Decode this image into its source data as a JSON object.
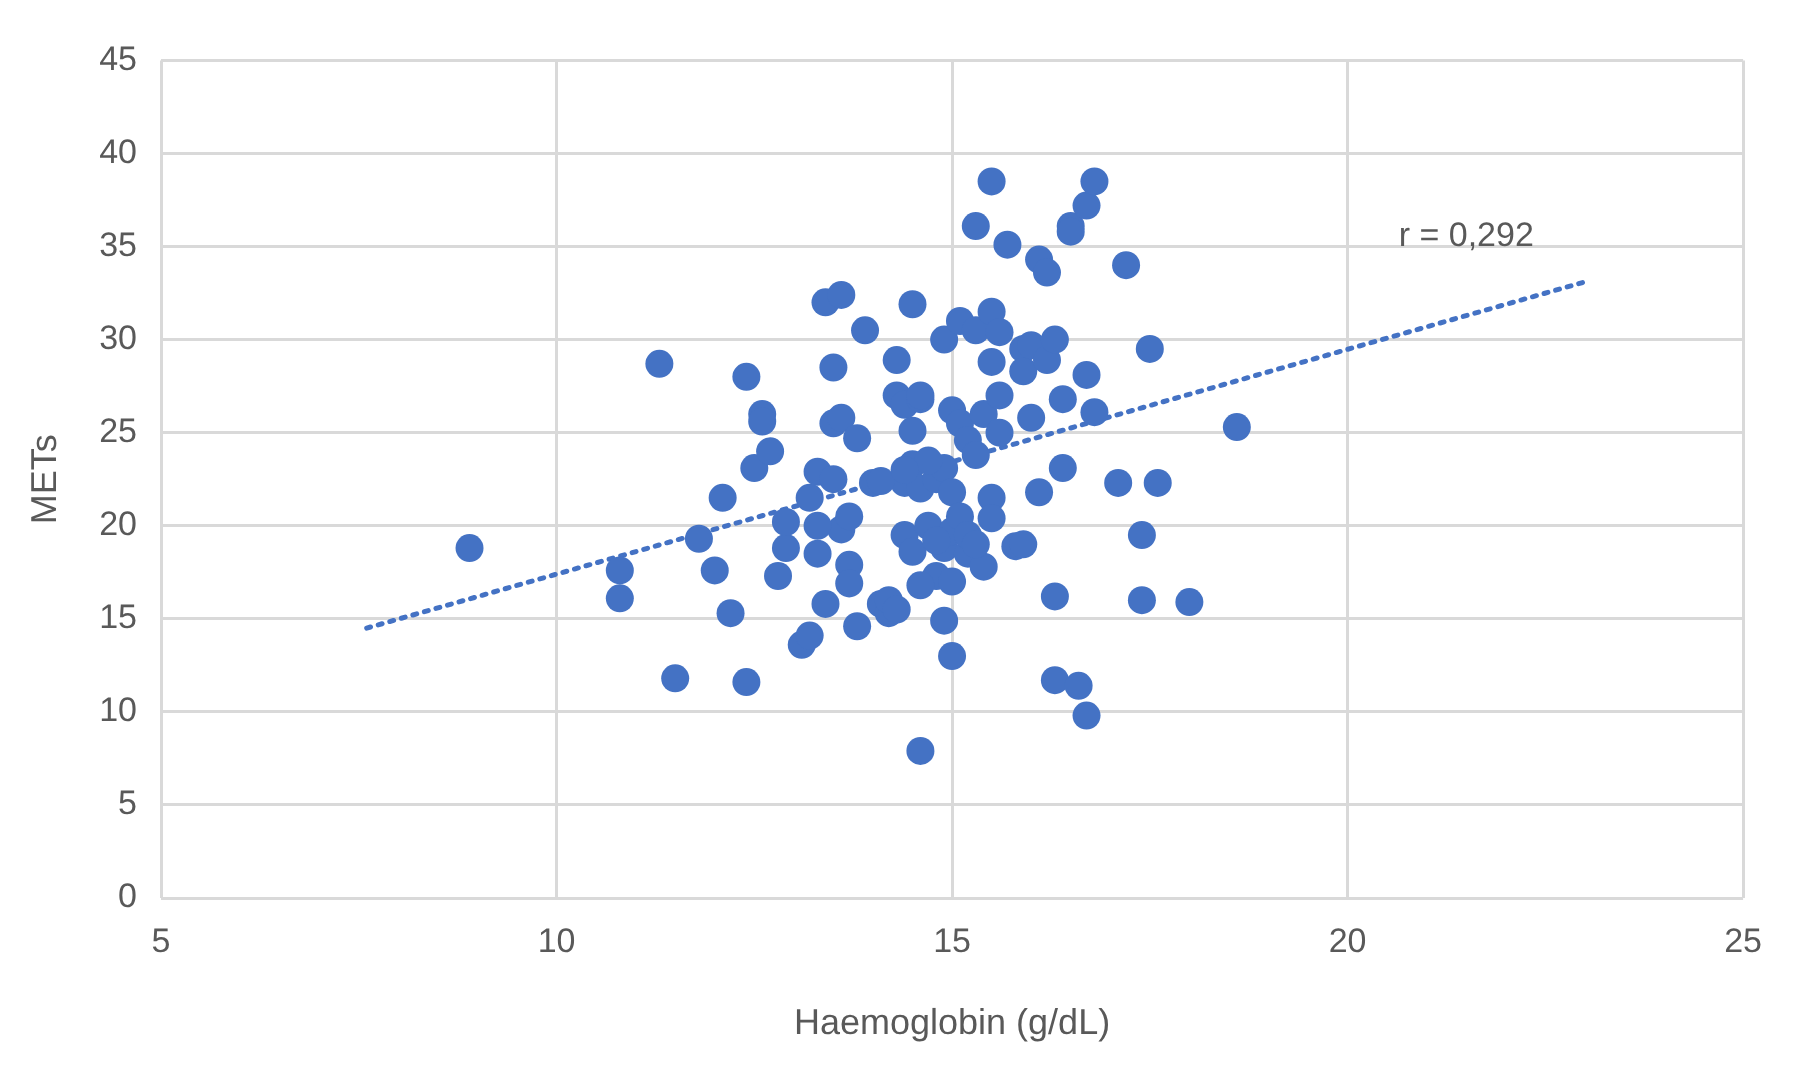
{
  "chart_data": {
    "type": "scatter",
    "xlabel": "Haemoglobin (g/dL)",
    "ylabel": "METs",
    "xlim": [
      5,
      25
    ],
    "xticks": [
      5,
      10,
      15,
      20,
      25
    ],
    "ylim": [
      0,
      45
    ],
    "yticks": [
      0,
      5,
      10,
      15,
      20,
      25,
      30,
      35,
      40,
      45
    ],
    "grid": true,
    "legend": false,
    "marker": "circle",
    "annotations": [
      "r = 0,292"
    ],
    "series": [
      {
        "color": "#4472c4",
        "x": [
          8.9,
          10.8,
          10.8,
          11.3,
          11.5,
          11.8,
          12.0,
          12.1,
          12.2,
          12.4,
          12.4,
          12.5,
          12.6,
          12.6,
          12.7,
          12.8,
          12.9,
          12.9,
          13.1,
          13.2,
          13.2,
          13.3,
          13.3,
          13.4,
          13.4,
          13.5,
          13.5,
          13.6,
          13.6,
          13.6,
          13.7,
          13.7,
          13.7,
          13.8,
          13.8,
          13.9,
          14.0,
          14.1,
          14.2,
          14.3,
          14.3,
          14.4,
          14.4,
          14.4,
          14.5,
          14.5,
          14.5,
          14.5,
          14.6,
          14.6,
          14.6,
          14.7,
          14.8,
          14.8,
          14.9,
          14.9,
          14.9,
          14.9,
          15.0,
          15.0,
          15.0,
          15.0,
          15.1,
          15.1,
          15.2,
          15.2,
          15.3,
          15.3,
          15.3,
          15.4,
          15.4,
          15.5,
          15.5,
          15.5,
          15.5,
          15.5,
          15.6,
          15.6,
          15.6,
          15.7,
          15.8,
          15.9,
          15.9,
          15.9,
          16.0,
          16.0,
          16.1,
          16.1,
          16.2,
          16.2,
          16.3,
          16.3,
          16.3,
          16.4,
          16.4,
          16.5,
          16.5,
          16.6,
          16.7,
          16.7,
          16.7,
          16.8,
          16.8,
          17.1,
          17.2,
          17.4,
          17.4,
          17.5,
          17.6,
          18.0,
          18.6,
          14.2,
          14.3,
          14.6,
          14.1,
          14.7,
          15.1,
          15.2,
          14.8,
          15.0,
          15.3,
          14.6,
          14.4,
          13.5,
          13.3
        ],
        "values": [
          18.8,
          17.6,
          16.1,
          28.7,
          11.8,
          19.3,
          17.6,
          21.5,
          15.3,
          28.0,
          11.6,
          23.1,
          26.0,
          25.6,
          24.0,
          17.3,
          18.8,
          20.2,
          13.6,
          14.1,
          21.5,
          22.9,
          18.5,
          15.8,
          32.0,
          28.5,
          25.5,
          32.4,
          25.8,
          19.8,
          20.5,
          17.9,
          16.9,
          24.7,
          14.6,
          30.5,
          22.3,
          15.8,
          15.3,
          28.9,
          27.0,
          26.5,
          19.5,
          22.3,
          31.9,
          25.1,
          23.3,
          18.6,
          7.9,
          26.8,
          22.0,
          20.0,
          17.3,
          22.5,
          30.0,
          23.1,
          18.8,
          14.9,
          13.0,
          26.2,
          21.8,
          19.7,
          31.0,
          25.5,
          24.6,
          18.5,
          36.1,
          30.5,
          23.8,
          17.8,
          26.0,
          38.5,
          31.5,
          28.8,
          21.5,
          20.4,
          30.4,
          27.0,
          25.0,
          35.1,
          18.9,
          29.5,
          19.0,
          28.3,
          25.8,
          29.7,
          34.3,
          21.8,
          33.6,
          28.9,
          30.0,
          16.2,
          11.7,
          23.1,
          26.8,
          36.1,
          35.8,
          11.4,
          37.2,
          28.1,
          9.8,
          38.5,
          26.1,
          22.3,
          34.0,
          19.5,
          16.0,
          29.5,
          22.3,
          15.9,
          25.3,
          16.0,
          15.5,
          16.8,
          22.4,
          23.5,
          20.5,
          19.5,
          19.2,
          17.0,
          19.0,
          27.0,
          23.0,
          22.5,
          20.0
        ]
      },
      {
        "type": "line",
        "color": "#4472c4",
        "line_style": "dotted",
        "marker": "none",
        "x": [
          7.6,
          23
        ],
        "values": [
          14.5,
          33.1
        ]
      }
    ]
  }
}
